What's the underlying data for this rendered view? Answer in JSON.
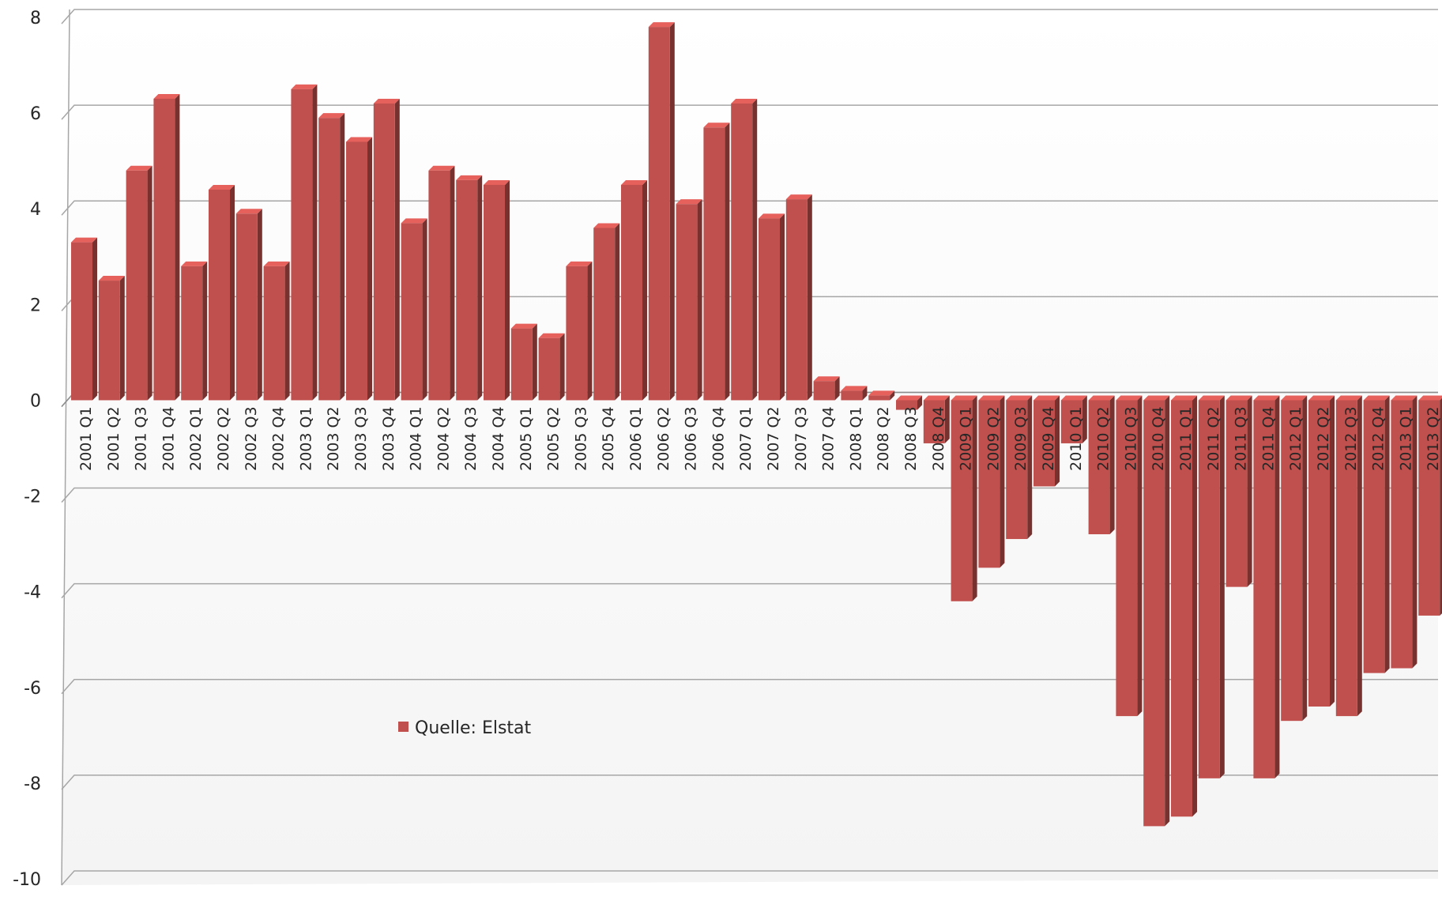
{
  "chart_data": {
    "type": "bar",
    "categories": [
      "2001 Q1",
      "2001 Q2",
      "2001 Q3",
      "2001 Q4",
      "2002 Q1",
      "2002 Q2",
      "2002 Q3",
      "2002 Q4",
      "2003 Q1",
      "2003 Q2",
      "2003 Q3",
      "2003 Q4",
      "2004 Q1",
      "2004 Q2",
      "2004 Q3",
      "2004 Q4",
      "2005 Q1",
      "2005 Q2",
      "2005 Q3",
      "2005 Q4",
      "2006 Q1",
      "2006 Q2",
      "2006 Q3",
      "2006 Q4",
      "2007 Q1",
      "2007 Q2",
      "2007 Q3",
      "2007 Q4",
      "2008 Q1",
      "2008 Q2",
      "2008 Q3",
      "2008 Q4",
      "2009 Q1",
      "2009 Q2",
      "2009 Q3",
      "2009 Q4",
      "2010 Q1",
      "2010 Q2",
      "2010 Q3",
      "2010 Q4",
      "2011 Q1",
      "2011 Q2",
      "2011 Q3",
      "2011 Q4",
      "2012 Q1",
      "2012 Q2",
      "2012 Q3",
      "2012 Q4",
      "2013 Q1",
      "2013 Q2"
    ],
    "series": [
      {
        "name": "Quelle: Elstat",
        "color": "#c0504d",
        "values": [
          3.3,
          2.5,
          4.8,
          6.3,
          2.8,
          4.4,
          3.9,
          2.8,
          6.5,
          5.9,
          5.4,
          6.2,
          3.7,
          4.8,
          4.6,
          4.5,
          1.5,
          1.3,
          2.8,
          3.6,
          4.5,
          7.8,
          4.1,
          5.7,
          6.2,
          3.8,
          4.2,
          0.4,
          0.2,
          0.1,
          -0.2,
          -0.9,
          -4.2,
          -3.5,
          -2.9,
          -1.8,
          -0.9,
          -2.8,
          -6.6,
          -8.9,
          -8.7,
          -7.9,
          -3.9,
          -7.9,
          -6.7,
          -6.4,
          -6.6,
          -5.7,
          -5.6,
          -4.5
        ]
      }
    ],
    "yticks": [
      "8",
      "6",
      "4",
      "2",
      "0",
      "-2",
      "-4",
      "-6",
      "-8",
      "-10"
    ],
    "ylim": [
      -10,
      8
    ],
    "grid": true,
    "legend_position": "center-left",
    "title": "",
    "xlabel": "",
    "ylabel": ""
  }
}
